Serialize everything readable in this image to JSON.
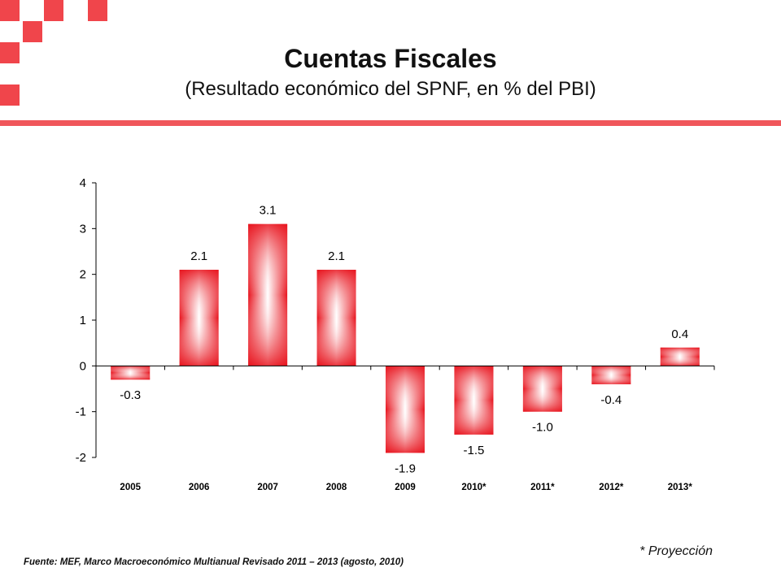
{
  "header": {
    "title": "Cuentas Fiscales",
    "subtitle": "(Resultado económico del SPNF, en % del PBI)"
  },
  "colors": {
    "accent": "#f0454b",
    "bar_edge": "#e8141e",
    "bar_center": "#ffffff"
  },
  "chart_data": {
    "type": "bar",
    "title": "Cuentas Fiscales",
    "subtitle": "(Resultado económico del SPNF, en % del PBI)",
    "categories": [
      "2005",
      "2006",
      "2007",
      "2008",
      "2009",
      "2010*",
      "2011*",
      "2012*",
      "2013*"
    ],
    "values": [
      -0.3,
      2.1,
      3.1,
      2.1,
      -1.9,
      -1.5,
      -1.0,
      -0.4,
      0.4
    ],
    "data_labels": [
      "-0.3",
      "2.1",
      "3.1",
      "2.1",
      "-1.9",
      "-1.5",
      "-1.0",
      "-0.4",
      "0.4"
    ],
    "yticks": [
      "4",
      "3",
      "2",
      "1",
      "0",
      "-1",
      "-2"
    ],
    "ylim": [
      -2,
      4
    ],
    "xlabel": "",
    "ylabel": "",
    "grid": false,
    "legend": "none"
  },
  "footer": {
    "note": "* Proyección",
    "source": "Fuente: MEF, Marco Macroeconómico Multianual Revisado 2011 – 2013 (agosto, 2010)"
  }
}
